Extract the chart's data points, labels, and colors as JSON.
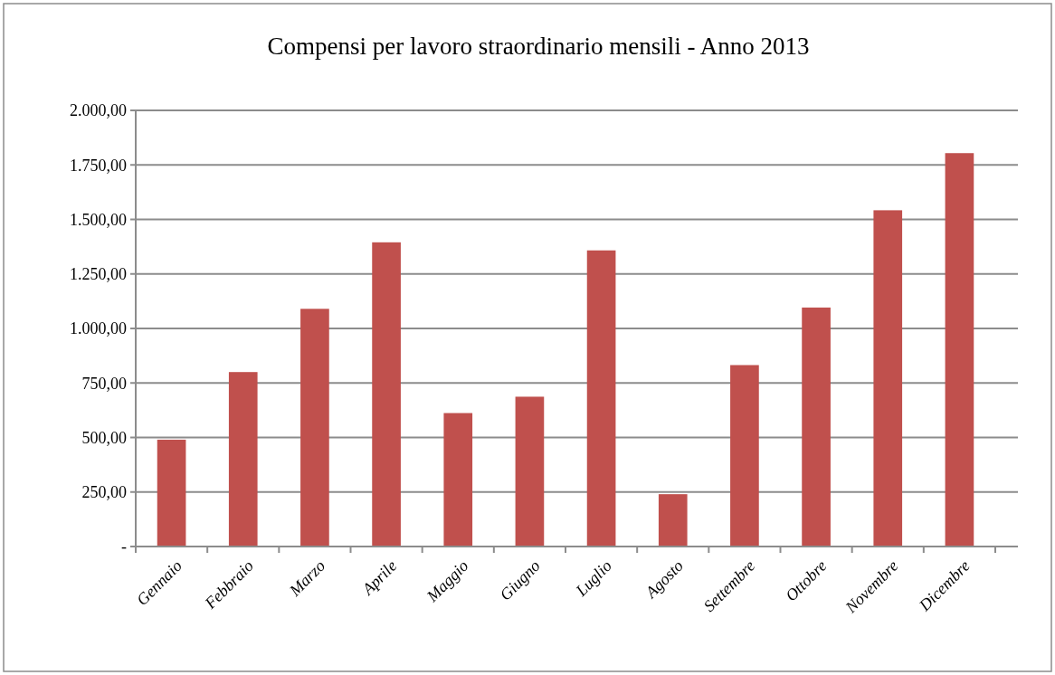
{
  "chart_data": {
    "type": "bar",
    "title": "Compensi per lavoro straordinario mensili - Anno 2013",
    "categories": [
      "Gennaio",
      "Febbraio",
      "Marzo",
      "Aprile",
      "Maggio",
      "Giugno",
      "Luglio",
      "Agosto",
      "Settembre",
      "Ottobre",
      "Novembre",
      "Dicembre"
    ],
    "values": [
      490,
      800,
      1090,
      1395,
      612,
      687,
      1358,
      240,
      832,
      1096,
      1542,
      1804
    ],
    "color": "#c0504d",
    "ylim": [
      0,
      2000
    ],
    "yticks": [
      {
        "value": 0,
        "label": "-"
      },
      {
        "value": 250,
        "label": "250,00"
      },
      {
        "value": 500,
        "label": "500,00"
      },
      {
        "value": 750,
        "label": "750,00"
      },
      {
        "value": 1000,
        "label": "1.000,00"
      },
      {
        "value": 1250,
        "label": "1.250,00"
      },
      {
        "value": 1500,
        "label": "1.500,00"
      },
      {
        "value": 1750,
        "label": "1.750,00"
      },
      {
        "value": 2000,
        "label": "2.000,00"
      }
    ],
    "grid": "y"
  }
}
